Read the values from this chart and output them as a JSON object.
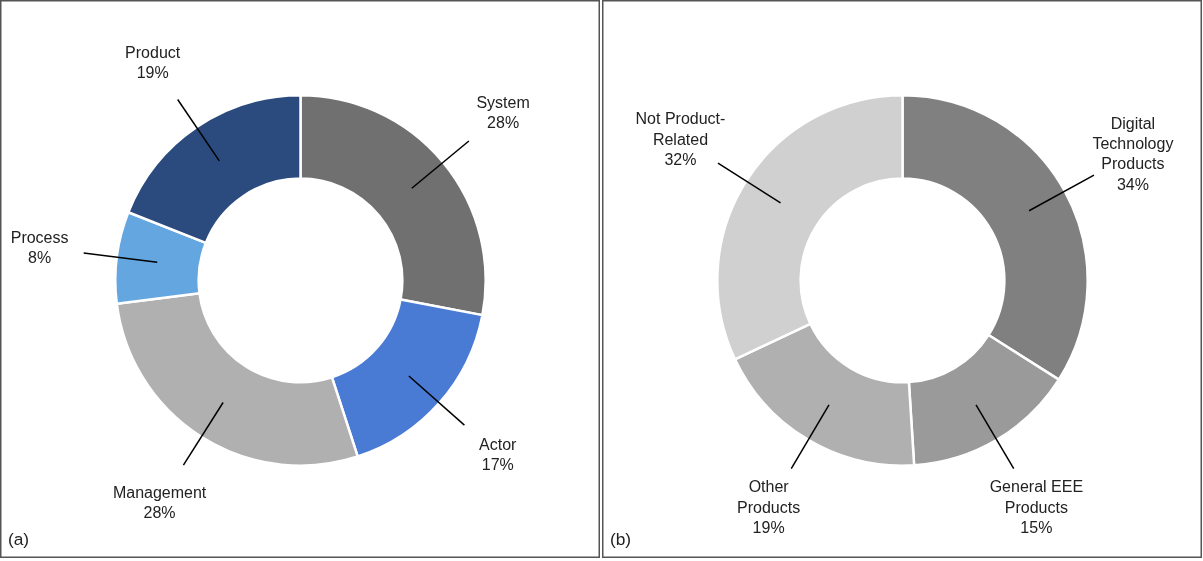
{
  "chart_data": [
    {
      "type": "donut",
      "categories": [
        "System",
        "Actor",
        "Management",
        "Process",
        "Product"
      ],
      "values": [
        28,
        17,
        28,
        8,
        19
      ],
      "value_labels": [
        "28%",
        "17%",
        "28%",
        "8%",
        "19%"
      ],
      "colors": [
        "#707070",
        "#4a7bd4",
        "#b0b0b0",
        "#64a6e0",
        "#2b4a7e"
      ],
      "annotations": [
        "(a)"
      ]
    },
    {
      "type": "donut",
      "categories": [
        "Digital Technology Products",
        "General EEE Products",
        "Other Products",
        "Not Product-Related"
      ],
      "values": [
        34,
        15,
        19,
        32
      ],
      "value_labels": [
        "34%",
        "15%",
        "19%",
        "32%"
      ],
      "colors": [
        "#808080",
        "#9a9a9a",
        "#b0b0b0",
        "#d0d0d0"
      ],
      "annotations": [
        "(b)"
      ]
    }
  ]
}
